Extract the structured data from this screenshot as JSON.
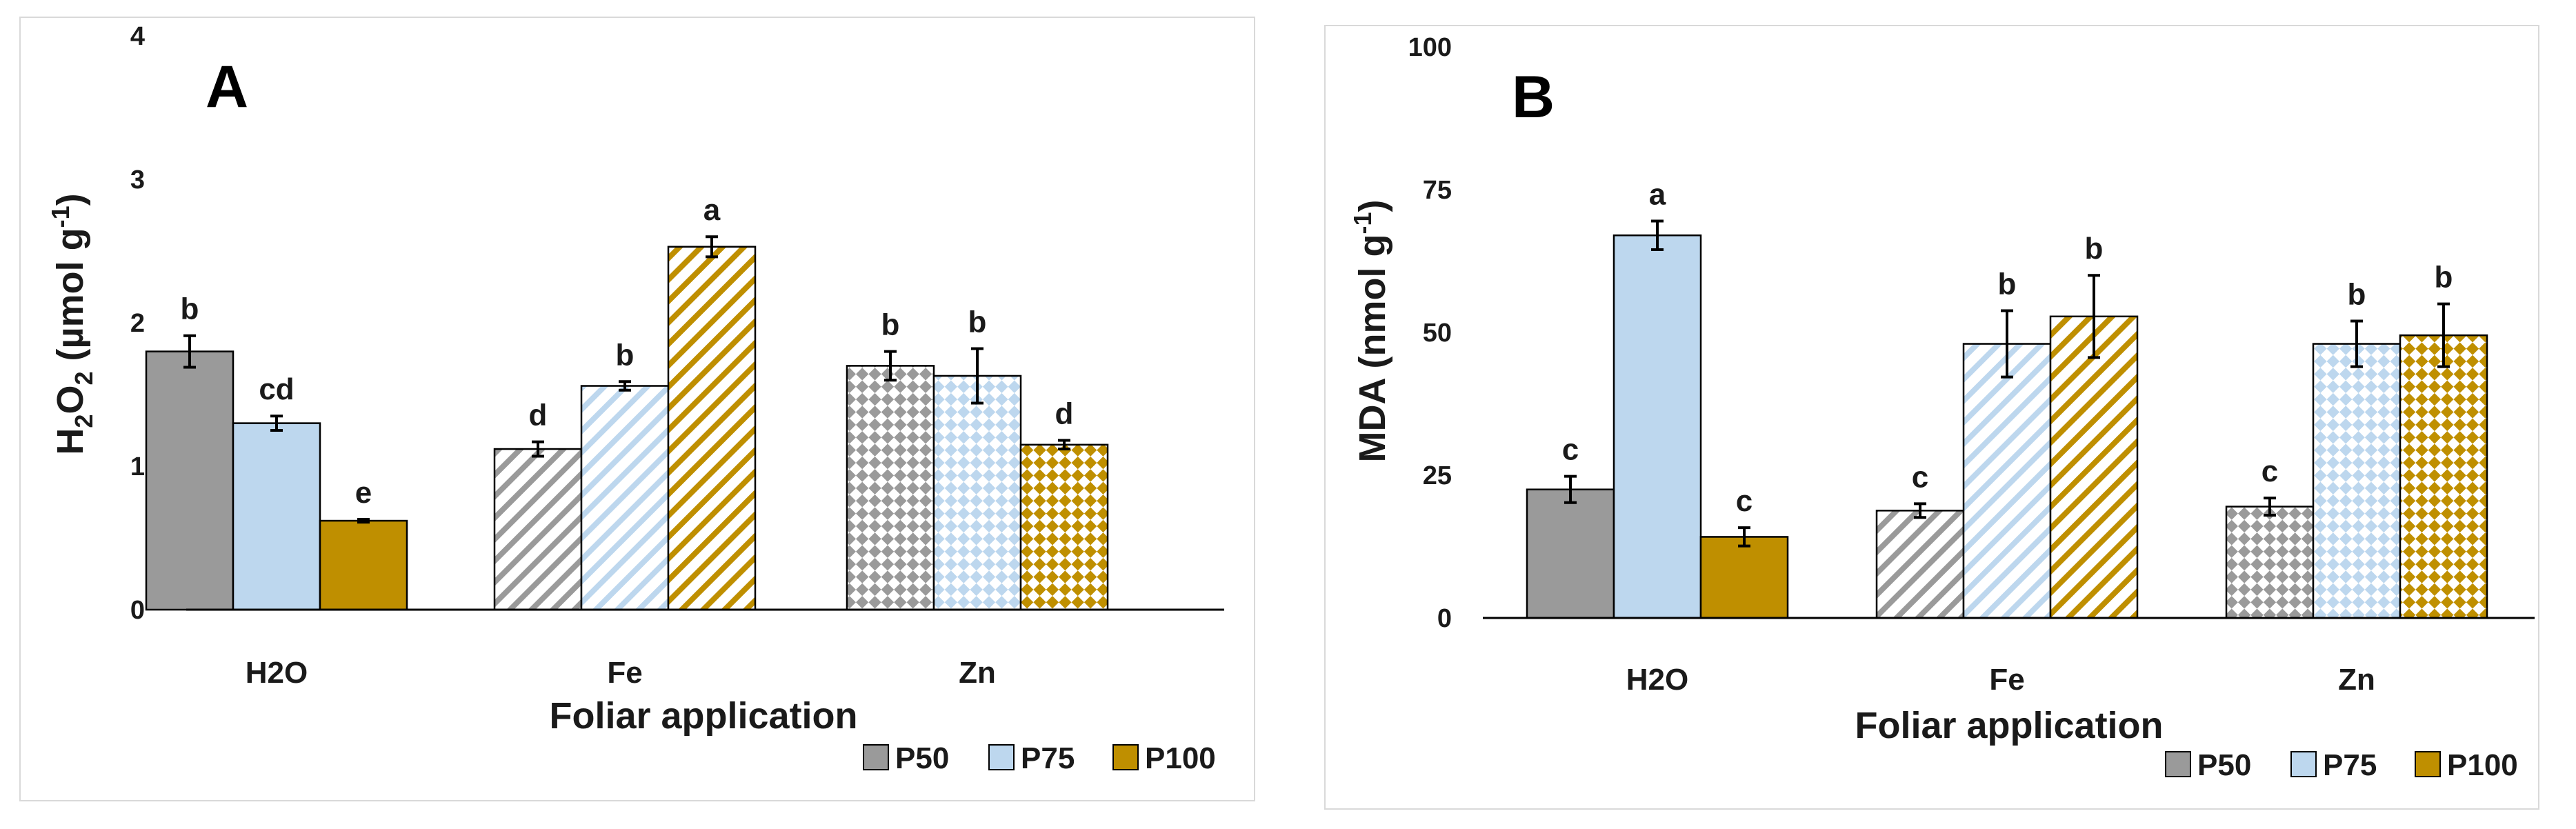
{
  "colors": {
    "P50": "#a6a6a6",
    "P75": "#bdd7ee",
    "P100": "#bf9000",
    "P50_fill": "#9a9a9a",
    "P100_fill": "#bf8f00",
    "axis": "#000000"
  },
  "chart_data": [
    {
      "type": "bar",
      "panel_label": "A",
      "ylabel_main": "H",
      "ylabel_sub1": "2",
      "ylabel_mid": "O",
      "ylabel_sub2": "2",
      "ylabel_unit": " (µmol g",
      "ylabel_sup": "-1",
      "ylabel_close": ")",
      "xlabel": "Foliar application",
      "categories": [
        "H2O",
        "Fe",
        "Zn"
      ],
      "category_patterns": [
        "solid",
        "diagonal",
        "diamond"
      ],
      "ylim": [
        0,
        4
      ],
      "yticks": [
        "0",
        "1",
        "2",
        "3",
        "4"
      ],
      "series": [
        {
          "name": "P50",
          "values": [
            1.8,
            1.12,
            1.7
          ],
          "errors": [
            0.11,
            0.05,
            0.1
          ],
          "labels": [
            "b",
            "d",
            "b"
          ]
        },
        {
          "name": "P75",
          "values": [
            1.3,
            1.56,
            1.63
          ],
          "errors": [
            0.05,
            0.03,
            0.19
          ],
          "labels": [
            "cd",
            "b",
            "b"
          ]
        },
        {
          "name": "P100",
          "values": [
            0.62,
            2.53,
            1.15
          ],
          "errors": [
            0.01,
            0.07,
            0.03
          ],
          "labels": [
            "e",
            "a",
            "d"
          ]
        }
      ],
      "legend": [
        "P50",
        "P75",
        "P100"
      ]
    },
    {
      "type": "bar",
      "panel_label": "B",
      "ylabel_text": "MDA (nmol g",
      "ylabel_sup": "-1",
      "ylabel_close": ")",
      "xlabel": "Foliar application",
      "categories": [
        "H2O",
        "Fe",
        "Zn"
      ],
      "category_patterns": [
        "solid",
        "diagonal",
        "diamond"
      ],
      "ylim": [
        0,
        100
      ],
      "yticks": [
        "0",
        "25",
        "50",
        "75",
        "100"
      ],
      "series": [
        {
          "name": "P50",
          "values": [
            22.5,
            18.8,
            19.5
          ],
          "errors": [
            2.3,
            1.2,
            1.5
          ],
          "labels": [
            "c",
            "c",
            "c"
          ]
        },
        {
          "name": "P75",
          "values": [
            67,
            48,
            48
          ],
          "errors": [
            2.5,
            5.8,
            4.0
          ],
          "labels": [
            "a",
            "b",
            "b"
          ]
        },
        {
          "name": "P100",
          "values": [
            14.2,
            52.8,
            49.5
          ],
          "errors": [
            1.6,
            7.2,
            5.5
          ],
          "labels": [
            "c",
            "b",
            "b"
          ]
        }
      ],
      "legend": [
        "P50",
        "P75",
        "P100"
      ]
    }
  ]
}
